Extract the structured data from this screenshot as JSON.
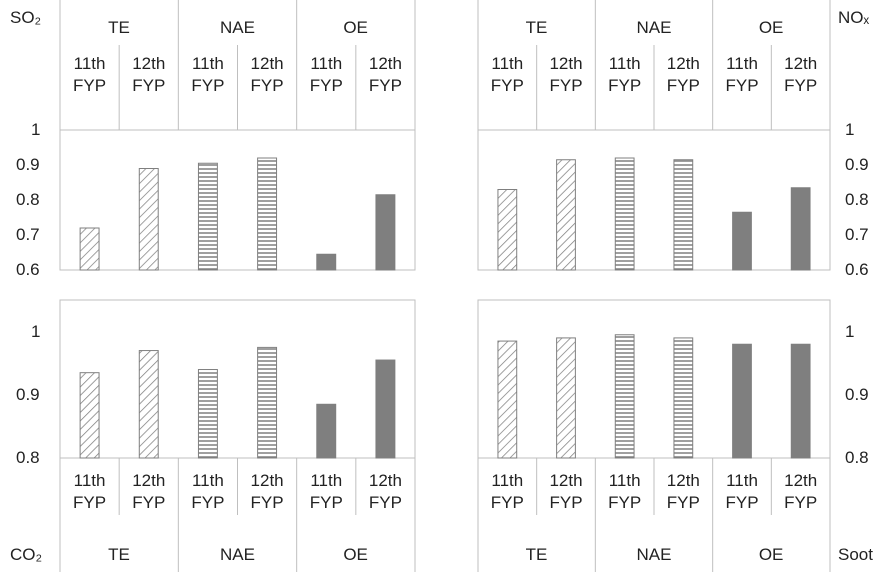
{
  "chart_data": [
    {
      "type": "bar",
      "title": "SO₂",
      "groups": [
        "TE",
        "NAE",
        "OE"
      ],
      "categories": [
        "11th FYP",
        "12th FYP",
        "11th FYP",
        "12th FYP",
        "11th FYP",
        "12th FYP"
      ],
      "values": [
        0.72,
        0.89,
        0.905,
        0.92,
        0.645,
        0.815
      ],
      "group_patterns": [
        "diagonal",
        "horizontal",
        "solid"
      ],
      "color": "#7f7f7f",
      "ylim": [
        0.6,
        1
      ],
      "yticks": [
        0.6,
        0.7,
        0.8,
        0.9,
        1
      ],
      "grid": false,
      "axis_side": "left",
      "labels_position": "top"
    },
    {
      "type": "bar",
      "title": "NOₓ",
      "groups": [
        "TE",
        "NAE",
        "OE"
      ],
      "categories": [
        "11th FYP",
        "12th FYP",
        "11th FYP",
        "12th FYP",
        "11th FYP",
        "12th FYP"
      ],
      "values": [
        0.83,
        0.915,
        0.92,
        0.915,
        0.765,
        0.835
      ],
      "group_patterns": [
        "diagonal",
        "horizontal",
        "solid"
      ],
      "color": "#7f7f7f",
      "ylim": [
        0.6,
        1
      ],
      "yticks": [
        0.6,
        0.7,
        0.8,
        0.9,
        1
      ],
      "grid": false,
      "axis_side": "right",
      "labels_position": "top"
    },
    {
      "type": "bar",
      "title": "CO₂",
      "groups": [
        "TE",
        "NAE",
        "OE"
      ],
      "categories": [
        "11th FYP",
        "12th FYP",
        "11th FYP",
        "12th FYP",
        "11th FYP",
        "12th FYP"
      ],
      "values": [
        0.935,
        0.97,
        0.94,
        0.975,
        0.885,
        0.955
      ],
      "group_patterns": [
        "diagonal",
        "horizontal",
        "solid"
      ],
      "color": "#7f7f7f",
      "ylim": [
        0.8,
        1.05
      ],
      "yticks": [
        0.8,
        0.9,
        1
      ],
      "grid": false,
      "axis_side": "left",
      "labels_position": "bottom"
    },
    {
      "type": "bar",
      "title": "Soot",
      "groups": [
        "TE",
        "NAE",
        "OE"
      ],
      "categories": [
        "11th FYP",
        "12th FYP",
        "11th FYP",
        "12th FYP",
        "11th FYP",
        "12th FYP"
      ],
      "values": [
        0.985,
        0.99,
        0.995,
        0.99,
        0.98,
        0.98
      ],
      "group_patterns": [
        "diagonal",
        "horizontal",
        "solid"
      ],
      "color": "#7f7f7f",
      "ylim": [
        0.8,
        1.05
      ],
      "yticks": [
        0.8,
        0.9,
        1
      ],
      "grid": false,
      "axis_side": "right",
      "labels_position": "bottom"
    }
  ]
}
